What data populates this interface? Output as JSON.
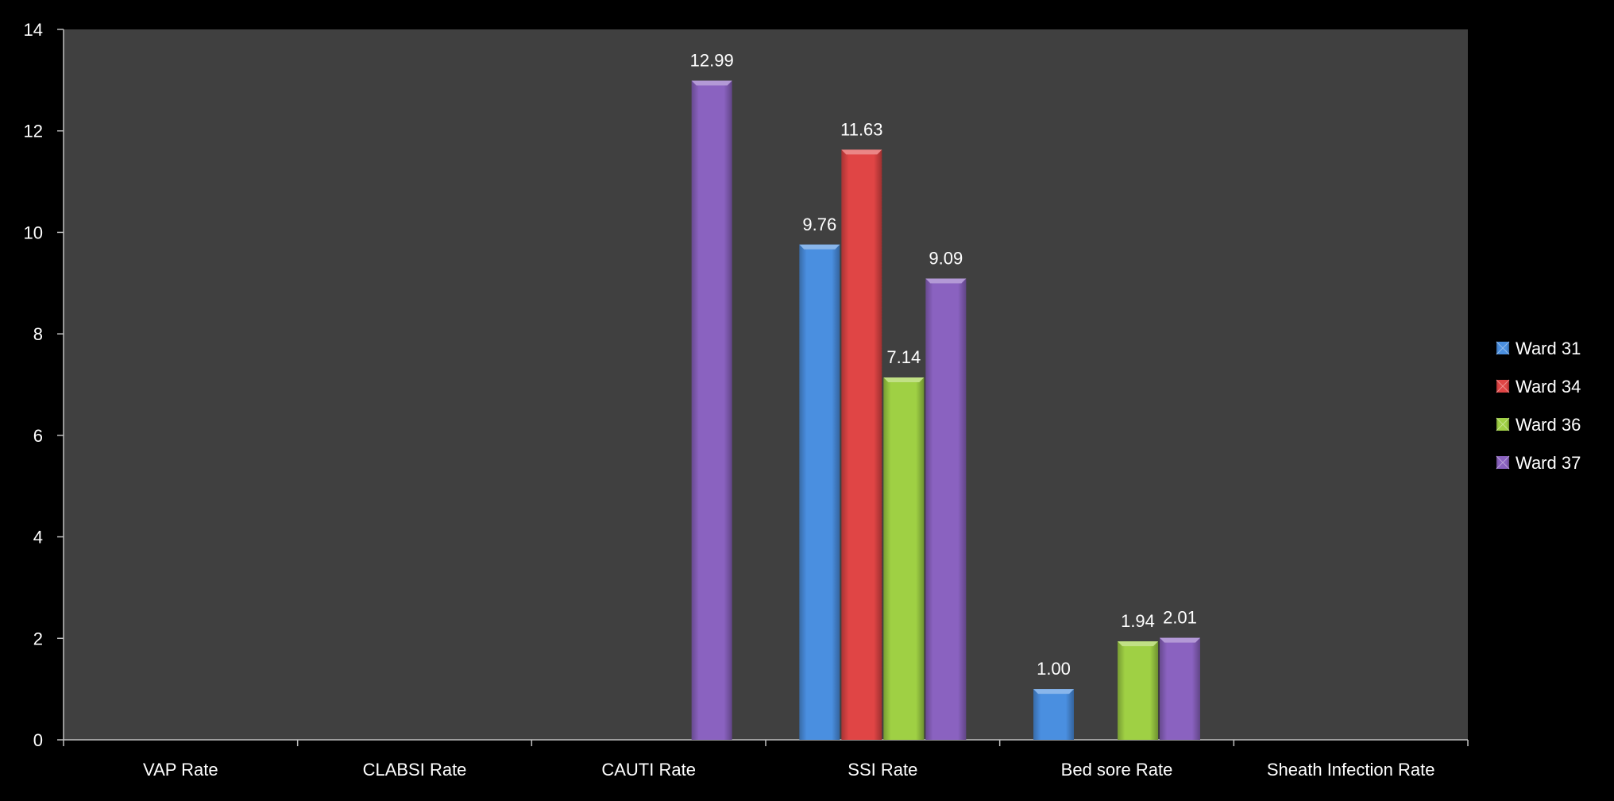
{
  "chart_data": {
    "type": "bar",
    "categories": [
      "VAP Rate",
      "CLABSI Rate",
      "CAUTI Rate",
      "SSI Rate",
      "Bed sore Rate",
      "Sheath Infection Rate"
    ],
    "series": [
      {
        "name": "Ward 31",
        "color": "#4a8fe0",
        "values": [
          null,
          null,
          null,
          9.76,
          1.0,
          null
        ]
      },
      {
        "name": "Ward 34",
        "color": "#e04545",
        "values": [
          null,
          null,
          null,
          11.63,
          null,
          null
        ]
      },
      {
        "name": "Ward 36",
        "color": "#9fd044",
        "values": [
          null,
          null,
          null,
          7.14,
          1.94,
          null
        ]
      },
      {
        "name": "Ward 37",
        "color": "#8a62c0",
        "values": [
          null,
          null,
          12.99,
          9.09,
          2.01,
          null
        ]
      }
    ],
    "ylim": [
      0,
      14
    ],
    "yticks": [
      0,
      2,
      4,
      6,
      8,
      10,
      12,
      14
    ],
    "title": "",
    "xlabel": "",
    "ylabel": "",
    "legend_position": "right",
    "grid": false,
    "plot_background": "#404040",
    "page_background": "#000000"
  }
}
